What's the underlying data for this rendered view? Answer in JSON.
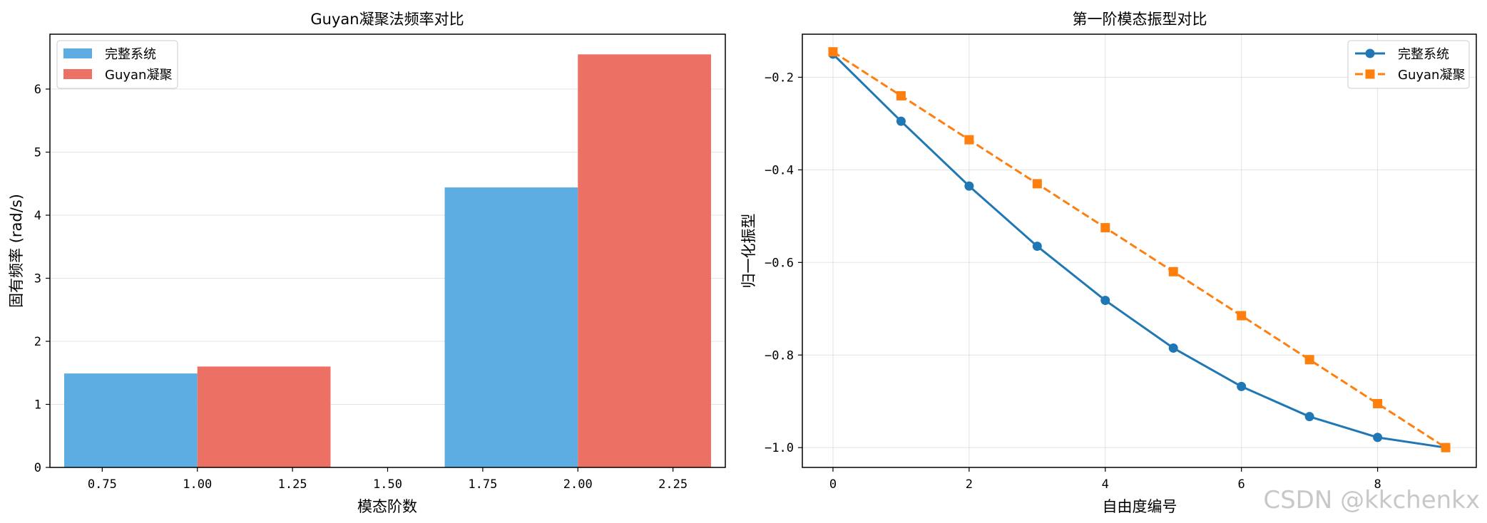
{
  "chart_data": [
    {
      "type": "bar",
      "title": "Guyan凝聚法频率对比",
      "xlabel": "模态阶数",
      "ylabel": "固有频率 (rad/s)",
      "xlim": [
        0.6125,
        2.3875
      ],
      "ylim": [
        0,
        6.87
      ],
      "xticks": [
        0.75,
        1.0,
        1.25,
        1.5,
        1.75,
        2.0,
        2.25
      ],
      "xtick_labels": [
        "0.75",
        "1.00",
        "1.25",
        "1.50",
        "1.75",
        "2.00",
        "2.25"
      ],
      "yticks": [
        0,
        1,
        2,
        3,
        4,
        5,
        6
      ],
      "ytick_labels": [
        "0",
        "1",
        "2",
        "3",
        "4",
        "5",
        "6"
      ],
      "bar_width": 0.35,
      "categories": [
        1,
        2
      ],
      "grid": "y",
      "legend": "top-left",
      "series": [
        {
          "name": "完整系统",
          "color": "#5dade2",
          "offset": -0.175,
          "values": [
            1.49,
            4.44
          ]
        },
        {
          "name": "Guyan凝聚",
          "color": "#ec7063",
          "offset": 0.175,
          "values": [
            1.6,
            6.55
          ]
        }
      ]
    },
    {
      "type": "line",
      "title": "第一阶模态振型对比",
      "xlabel": "自由度编号",
      "ylabel": "归一化振型",
      "xlim": [
        -0.45,
        9.45
      ],
      "ylim": [
        -1.0428,
        -0.107
      ],
      "xticks": [
        0,
        2,
        4,
        6,
        8
      ],
      "xtick_labels": [
        "0",
        "2",
        "4",
        "6",
        "8"
      ],
      "yticks": [
        -1.0,
        -0.8,
        -0.6,
        -0.4,
        -0.2
      ],
      "ytick_labels": [
        "−1.0",
        "−0.8",
        "−0.6",
        "−0.4",
        "−0.2"
      ],
      "grid": "both",
      "legend": "top-right",
      "x": [
        0,
        1,
        2,
        3,
        4,
        5,
        6,
        7,
        8,
        9
      ],
      "series": [
        {
          "name": "完整系统",
          "color": "#1f77b4",
          "marker": "circle",
          "dash": "solid",
          "values": [
            -0.15,
            -0.295,
            -0.435,
            -0.565,
            -0.682,
            -0.785,
            -0.868,
            -0.933,
            -0.978,
            -1.0
          ]
        },
        {
          "name": "Guyan凝聚",
          "color": "#ff7f0e",
          "marker": "square",
          "dash": "dashed",
          "values": [
            -0.145,
            -0.24,
            -0.335,
            -0.43,
            -0.525,
            -0.62,
            -0.715,
            -0.81,
            -0.905,
            -1.0
          ]
        }
      ]
    }
  ],
  "watermark": "CSDN @kkchenkx"
}
